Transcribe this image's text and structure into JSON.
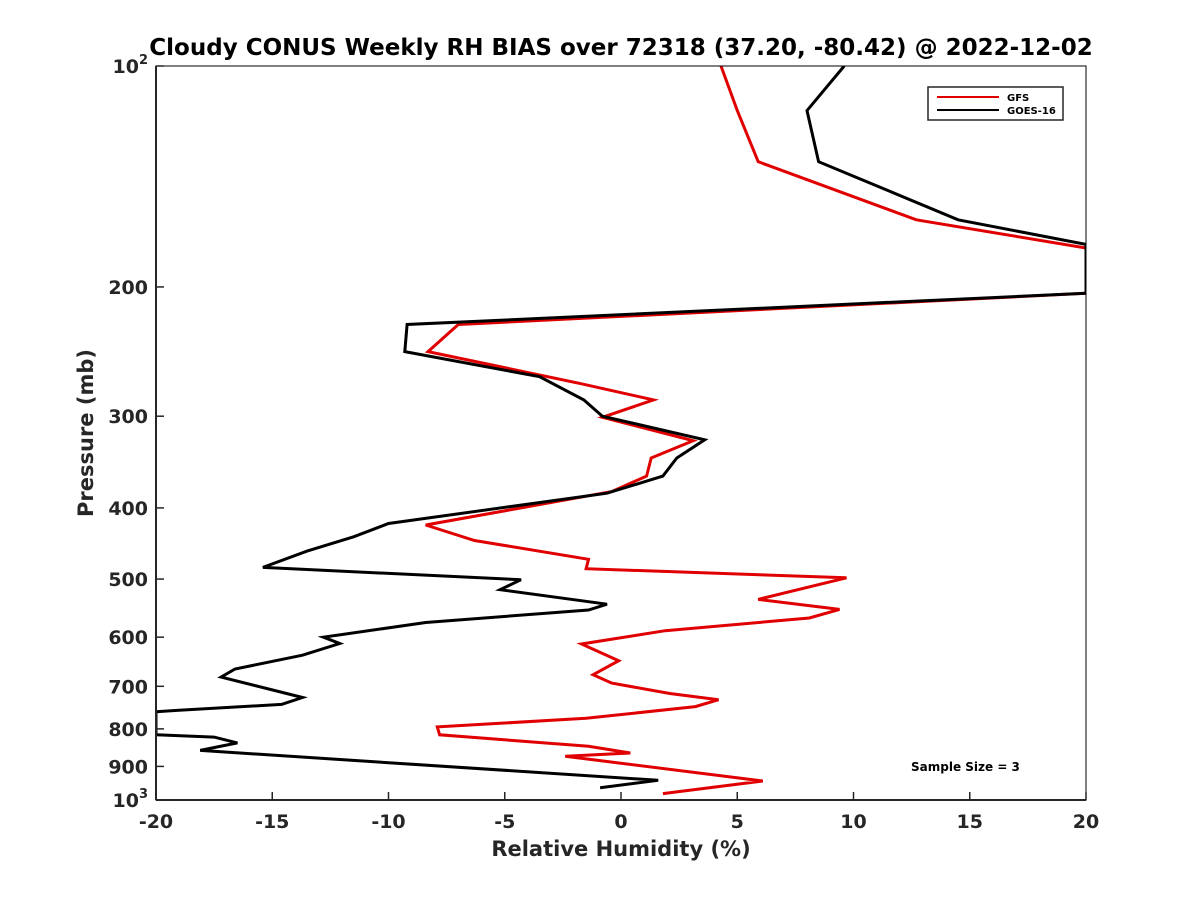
{
  "chart_data": {
    "type": "line",
    "title": "Cloudy CONUS Weekly RH BIAS over 72318 (37.20, -80.42) @ 2022-12-02",
    "xlabel": "Relative Humidity (%)",
    "ylabel": "Pressure (mb)",
    "xlim": [
      -20,
      20
    ],
    "ylim": [
      100,
      1000
    ],
    "yscale": "log",
    "y_reversed": true,
    "grid": false,
    "x_ticks": [
      -20,
      -15,
      -10,
      -5,
      0,
      5,
      10,
      15,
      20
    ],
    "x_tick_labels": [
      "-20",
      "-15",
      "-10",
      "-5",
      "0",
      "5",
      "10",
      "15",
      "20"
    ],
    "y_ticks": [
      100,
      200,
      300,
      400,
      500,
      600,
      700,
      800,
      900,
      1000
    ],
    "y_tick_labels": [
      {
        "base": "10",
        "exp": "2"
      },
      {
        "base": "200",
        "exp": ""
      },
      {
        "base": "300",
        "exp": ""
      },
      {
        "base": "400",
        "exp": ""
      },
      {
        "base": "500",
        "exp": ""
      },
      {
        "base": "600",
        "exp": ""
      },
      {
        "base": "700",
        "exp": ""
      },
      {
        "base": "800",
        "exp": ""
      },
      {
        "base": "900",
        "exp": ""
      },
      {
        "base": "10",
        "exp": "3"
      }
    ],
    "legend_position": "top-right",
    "annotation": "Sample Size = 3",
    "series": [
      {
        "name": "GFS",
        "color": "#e00000",
        "points": [
          [
            4.3,
            100
          ],
          [
            5.0,
            115
          ],
          [
            5.9,
            135
          ],
          [
            12.7,
            162
          ],
          [
            20.0,
            177
          ],
          [
            20.0,
            204
          ],
          [
            -7.0,
            225
          ],
          [
            -8.3,
            245
          ],
          [
            -1.7,
            271
          ],
          [
            1.4,
            285
          ],
          [
            -0.8,
            301
          ],
          [
            3.1,
            324
          ],
          [
            1.3,
            342
          ],
          [
            1.1,
            362
          ],
          [
            -0.4,
            380
          ],
          [
            -8.4,
            422
          ],
          [
            -6.3,
            443
          ],
          [
            -1.4,
            470
          ],
          [
            -1.5,
            484
          ],
          [
            9.7,
            498
          ],
          [
            5.9,
            533
          ],
          [
            9.4,
            550
          ],
          [
            8.1,
            565
          ],
          [
            1.9,
            588
          ],
          [
            -1.7,
            613
          ],
          [
            -0.1,
            646
          ],
          [
            -1.2,
            675
          ],
          [
            -0.4,
            693
          ],
          [
            2.1,
            716
          ],
          [
            4.2,
            730
          ],
          [
            3.2,
            746
          ],
          [
            -1.5,
            774
          ],
          [
            -7.9,
            795
          ],
          [
            -7.8,
            815
          ],
          [
            -1.4,
            845
          ],
          [
            0.4,
            863
          ],
          [
            -2.4,
            872
          ],
          [
            6.1,
            942
          ],
          [
            1.8,
            980
          ]
        ]
      },
      {
        "name": "GOES-16",
        "color": "#000000",
        "points": [
          [
            9.6,
            100
          ],
          [
            8.0,
            115
          ],
          [
            8.5,
            135
          ],
          [
            14.5,
            162
          ],
          [
            20.0,
            175
          ],
          [
            20.0,
            204
          ],
          [
            -9.2,
            225
          ],
          [
            -9.3,
            245
          ],
          [
            -3.5,
            265
          ],
          [
            -1.6,
            285
          ],
          [
            -0.8,
            300
          ],
          [
            3.6,
            323
          ],
          [
            2.4,
            342
          ],
          [
            1.8,
            362
          ],
          [
            -0.6,
            382
          ],
          [
            -10.0,
            420
          ],
          [
            -11.5,
            438
          ],
          [
            -13.5,
            458
          ],
          [
            -15.4,
            482
          ],
          [
            -4.3,
            501
          ],
          [
            -5.2,
            517
          ],
          [
            -0.6,
            541
          ],
          [
            -1.4,
            551
          ],
          [
            -8.4,
            573
          ],
          [
            -12.8,
            600
          ],
          [
            -12.1,
            612
          ],
          [
            -13.7,
            635
          ],
          [
            -16.6,
            663
          ],
          [
            -17.2,
            680
          ],
          [
            -13.7,
            725
          ],
          [
            -14.6,
            741
          ],
          [
            -19.1,
            755
          ],
          [
            -20.0,
            758
          ],
          [
            -20.0,
            815
          ],
          [
            -17.5,
            821
          ],
          [
            -16.5,
            836
          ],
          [
            -18.1,
            856
          ],
          [
            1.6,
            940
          ],
          [
            -0.9,
            962
          ]
        ]
      }
    ]
  }
}
